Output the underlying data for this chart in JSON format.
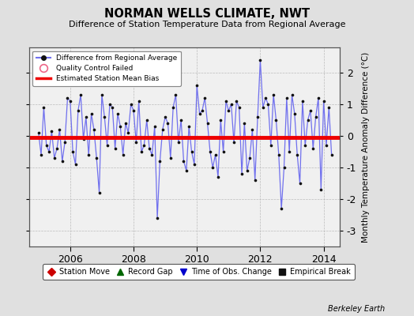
{
  "title": "NORMAN WELLS CLIMATE, NWT",
  "subtitle": "Difference of Station Temperature Data from Regional Average",
  "ylabel": "Monthly Temperature Anomaly Difference (°C)",
  "bias": -0.05,
  "xlim_start": 2004.7,
  "xlim_end": 2014.5,
  "ylim": [
    -3.5,
    2.8
  ],
  "yticks": [
    -3,
    -2,
    -1,
    0,
    1,
    2
  ],
  "bg_color": "#e0e0e0",
  "plot_bg": "#f0f0f0",
  "line_color": "#7070ee",
  "marker_color": "#111111",
  "bias_color": "#ee0000",
  "footer": "Berkeley Earth",
  "xtick_positions": [
    2006,
    2008,
    2010,
    2012,
    2014
  ],
  "x_values": [
    2005.0,
    2005.083,
    2005.167,
    2005.25,
    2005.333,
    2005.417,
    2005.5,
    2005.583,
    2005.667,
    2005.75,
    2005.833,
    2005.917,
    2006.0,
    2006.083,
    2006.167,
    2006.25,
    2006.333,
    2006.417,
    2006.5,
    2006.583,
    2006.667,
    2006.75,
    2006.833,
    2006.917,
    2007.0,
    2007.083,
    2007.167,
    2007.25,
    2007.333,
    2007.417,
    2007.5,
    2007.583,
    2007.667,
    2007.75,
    2007.833,
    2007.917,
    2008.0,
    2008.083,
    2008.167,
    2008.25,
    2008.333,
    2008.417,
    2008.5,
    2008.583,
    2008.667,
    2008.75,
    2008.833,
    2008.917,
    2009.0,
    2009.083,
    2009.167,
    2009.25,
    2009.333,
    2009.417,
    2009.5,
    2009.583,
    2009.667,
    2009.75,
    2009.833,
    2009.917,
    2010.0,
    2010.083,
    2010.167,
    2010.25,
    2010.333,
    2010.417,
    2010.5,
    2010.583,
    2010.667,
    2010.75,
    2010.833,
    2010.917,
    2011.0,
    2011.083,
    2011.167,
    2011.25,
    2011.333,
    2011.417,
    2011.5,
    2011.583,
    2011.667,
    2011.75,
    2011.833,
    2011.917,
    2012.0,
    2012.083,
    2012.167,
    2012.25,
    2012.333,
    2012.417,
    2012.5,
    2012.583,
    2012.667,
    2012.75,
    2012.833,
    2012.917,
    2013.0,
    2013.083,
    2013.167,
    2013.25,
    2013.333,
    2013.417,
    2013.5,
    2013.583,
    2013.667,
    2013.75,
    2013.833,
    2013.917,
    2014.0,
    2014.083,
    2014.167,
    2014.25
  ],
  "y_values": [
    0.1,
    -0.6,
    0.9,
    -0.3,
    -0.5,
    0.15,
    -0.7,
    -0.4,
    0.2,
    -0.8,
    -0.2,
    1.2,
    1.1,
    -0.5,
    -0.9,
    0.8,
    1.3,
    -0.1,
    0.6,
    -0.6,
    0.7,
    0.2,
    -0.7,
    -1.8,
    1.3,
    0.6,
    -0.3,
    1.0,
    0.9,
    -0.4,
    0.7,
    0.3,
    -0.6,
    0.4,
    0.1,
    1.0,
    0.8,
    -0.2,
    1.1,
    -0.5,
    -0.3,
    0.5,
    -0.4,
    -0.6,
    0.3,
    -2.6,
    -0.8,
    0.2,
    0.6,
    0.4,
    -0.7,
    0.9,
    1.3,
    -0.2,
    0.5,
    -0.8,
    -1.1,
    0.3,
    -0.5,
    -0.9,
    1.6,
    0.7,
    0.8,
    1.2,
    0.4,
    -0.5,
    -1.0,
    -0.6,
    -1.3,
    0.5,
    -0.5,
    1.1,
    0.8,
    1.0,
    -0.2,
    1.1,
    0.9,
    -1.2,
    0.4,
    -1.1,
    -0.7,
    0.2,
    -1.4,
    0.6,
    2.4,
    0.9,
    1.2,
    1.0,
    -0.3,
    1.3,
    0.5,
    -0.6,
    -2.3,
    -1.0,
    1.2,
    -0.5,
    1.3,
    0.7,
    -0.6,
    -1.5,
    1.1,
    -0.3,
    0.5,
    0.8,
    -0.4,
    0.6,
    1.2,
    -1.7,
    1.1,
    -0.3,
    0.9,
    -0.6
  ]
}
